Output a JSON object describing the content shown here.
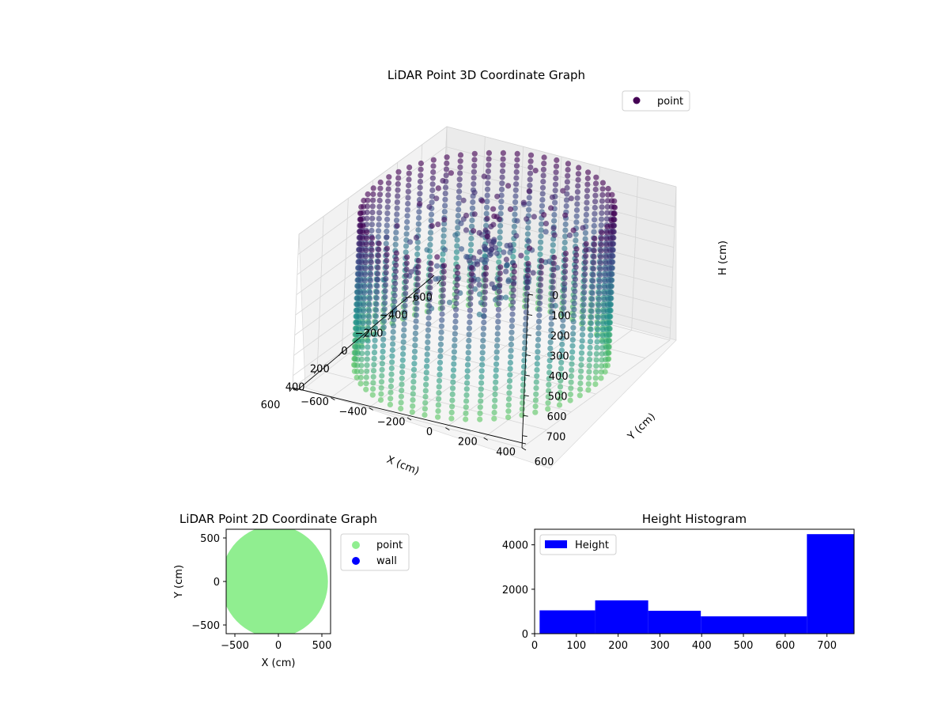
{
  "chart_data": [
    {
      "type": "scatter3d",
      "title": "LiDAR Point 3D Coordinate Graph",
      "xlabel": "X (cm)",
      "ylabel": "Y (cm)",
      "zlabel": "H (cm)",
      "xlim": [
        -600,
        600
      ],
      "ylim": [
        -600,
        600
      ],
      "zlim": [
        0,
        760
      ],
      "z_inverted": true,
      "xticks": [
        "−600",
        "−400",
        "−200",
        "0",
        "200",
        "400",
        "600"
      ],
      "yticks": [
        "−600",
        "−400",
        "−200",
        "0",
        "200",
        "400",
        "600"
      ],
      "zticks": [
        "0",
        "100",
        "200",
        "300",
        "400",
        "500",
        "600",
        "700"
      ],
      "xtick_values": [
        -600,
        -400,
        -200,
        0,
        200,
        400,
        600
      ],
      "ytick_values": [
        -600,
        -400,
        -200,
        0,
        200,
        400,
        600
      ],
      "ztick_values": [
        0,
        100,
        200,
        300,
        400,
        500,
        600,
        700
      ],
      "colormap": "viridis",
      "legend": {
        "placement": "top-right",
        "entries": [
          {
            "label": "point",
            "color": "#440154"
          }
        ]
      },
      "series": [
        {
          "name": "point",
          "shape": "ring wall",
          "radius_cm": 560,
          "height_range_cm": [
            0,
            760
          ]
        }
      ],
      "grid": true
    },
    {
      "type": "scatter",
      "title": "LiDAR Point 2D Coordinate Graph",
      "xlabel": "X (cm)",
      "ylabel": "Y (cm)",
      "xlim": [
        -600,
        600
      ],
      "ylim": [
        -600,
        600
      ],
      "xticks": [
        "−500",
        "0",
        "500"
      ],
      "yticks": [
        "−500",
        "0",
        "500"
      ],
      "xtick_values": [
        -500,
        0,
        500
      ],
      "ytick_values": [
        -500,
        0,
        500
      ],
      "legend": {
        "placement": "right-outside",
        "entries": [
          {
            "label": "point",
            "color": "#90ee90"
          },
          {
            "label": "wall",
            "color": "#0000ff"
          }
        ]
      },
      "series": [
        {
          "name": "point",
          "color": "#90ee90",
          "shape": "filled disc",
          "radius_cm": 570
        },
        {
          "name": "wall",
          "color": "#0000ff",
          "points": []
        }
      ],
      "grid": false
    },
    {
      "type": "bar",
      "title": "Height Histogram",
      "xlim": [
        0,
        765
      ],
      "ylim": [
        0,
        4700
      ],
      "xticks": [
        "0",
        "100",
        "200",
        "300",
        "400",
        "500",
        "600",
        "700"
      ],
      "yticks": [
        "0",
        "2000",
        "4000"
      ],
      "xtick_values": [
        0,
        100,
        200,
        300,
        400,
        500,
        600,
        700
      ],
      "ytick_values": [
        0,
        2000,
        4000
      ],
      "color": "#0000ff",
      "legend": {
        "placement": "top-left",
        "entries": [
          {
            "label": "Height",
            "color": "#0000ff"
          }
        ]
      },
      "bins": [
        {
          "start": 12,
          "end": 145,
          "count": 1050
        },
        {
          "start": 145,
          "end": 272,
          "count": 1500
        },
        {
          "start": 272,
          "end": 398,
          "count": 1030
        },
        {
          "start": 398,
          "end": 652,
          "count": 780
        },
        {
          "start": 652,
          "end": 765,
          "count": 4480
        }
      ],
      "grid": false
    }
  ]
}
